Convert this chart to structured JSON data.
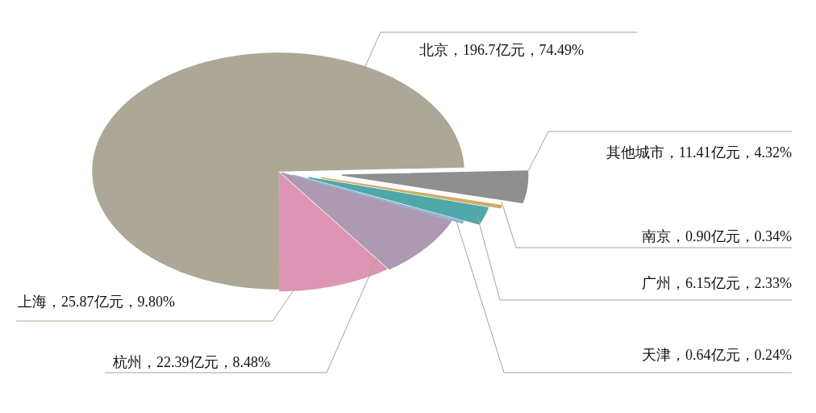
{
  "chart_data": {
    "type": "pie",
    "categories": [
      "其他城市",
      "南京",
      "广州",
      "天津",
      "杭州",
      "上海",
      "北京"
    ],
    "values": [
      11.41,
      0.9,
      6.15,
      0.64,
      22.39,
      25.87,
      196.7
    ],
    "colors": [
      "#8f8f8f",
      "#d2aa68",
      "#4fa8a7",
      "#92b5d8",
      "#ad99b1",
      "#de95b4",
      "#aca796"
    ],
    "value_labels": [
      "，11.41亿元，4.32%",
      "，0.90亿元，0.34%",
      "，6.15亿元，2.33%",
      "，0.64亿元，0.24%",
      "，22.39亿元，8.48%",
      "，25.87亿元，9.80%",
      "，196.7亿元，74.49%"
    ]
  }
}
